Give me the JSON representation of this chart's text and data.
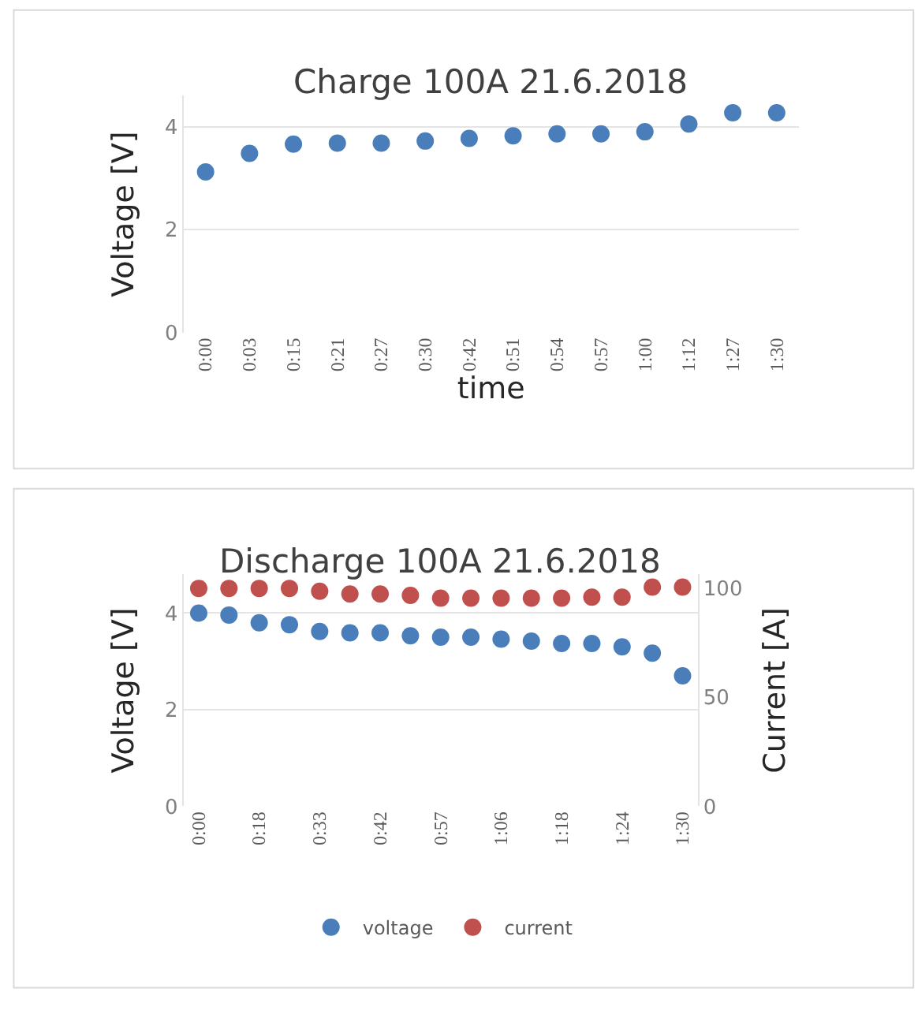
{
  "chart_data": [
    {
      "type": "scatter",
      "title": "Charge 100A 21.6.2018",
      "xlabel": "time",
      "ylabel": "Voltage [V]",
      "categories": [
        "0:00",
        "0:03",
        "0:15",
        "0:21",
        "0:27",
        "0:30",
        "0:42",
        "0:51",
        "0:54",
        "0:57",
        "1:00",
        "1:12",
        "1:27",
        "1:30"
      ],
      "series": [
        {
          "color": "#4a7ebb",
          "values": [
            3.12,
            3.48,
            3.66,
            3.68,
            3.68,
            3.72,
            3.77,
            3.82,
            3.86,
            3.86,
            3.9,
            4.05,
            4.27,
            4.27
          ]
        }
      ],
      "ylim": [
        0,
        4.6
      ],
      "yticks": [
        0,
        2,
        4
      ],
      "grid": "y",
      "marker": "circle",
      "legend": false
    },
    {
      "type": "scatter",
      "title": "Discharge 100A 21.6.2018",
      "ylabel": "Voltage [V]",
      "y2label": "Current [A]",
      "categories": [
        "0:00",
        null,
        "0:18",
        null,
        "0:33",
        null,
        "0:42",
        null,
        "0:57",
        null,
        "1:06",
        null,
        "1:18",
        null,
        "1:24",
        null,
        "1:30"
      ],
      "series": [
        {
          "name": "voltage",
          "color": "#4a7ebb",
          "values": [
            4.0,
            3.96,
            3.8,
            3.76,
            3.62,
            3.59,
            3.59,
            3.53,
            3.5,
            3.5,
            3.46,
            3.42,
            3.37,
            3.37,
            3.3,
            3.17,
            2.7
          ]
        },
        {
          "name": "current",
          "color": "#c0504d",
          "axis": "y2",
          "values": [
            100,
            100,
            100,
            100,
            98.7,
            97.4,
            97.4,
            96.8,
            95.5,
            95.5,
            95.5,
            95.5,
            95.5,
            96,
            96,
            100.6,
            100.6
          ]
        }
      ],
      "ylim": [
        0,
        4.8
      ],
      "yticks": [
        0,
        2,
        4
      ],
      "y2lim": [
        0,
        106.4
      ],
      "y2ticks": [
        0,
        50,
        100
      ],
      "grid": "y",
      "marker": "circle",
      "legend": "bottom"
    }
  ]
}
